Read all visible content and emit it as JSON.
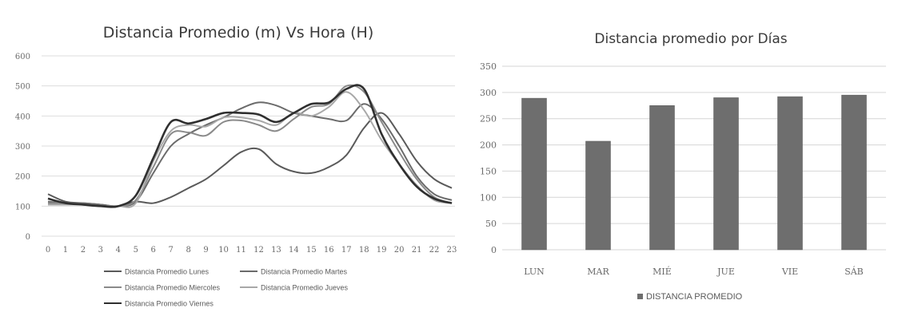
{
  "chart_data": [
    {
      "type": "line",
      "title": "Distancia Promedio (m) Vs Hora (H)",
      "xlabel": "",
      "ylabel": "",
      "x": [
        0,
        1,
        2,
        3,
        4,
        5,
        6,
        7,
        8,
        9,
        10,
        11,
        12,
        13,
        14,
        15,
        16,
        17,
        18,
        19,
        20,
        21,
        22,
        23
      ],
      "ylim": [
        0,
        600
      ],
      "yticks": [
        0,
        100,
        200,
        300,
        400,
        500,
        600
      ],
      "grid": true,
      "legend_position": "bottom",
      "series": [
        {
          "name": "Distancia Promedio Lunes",
          "color": "#5a5a5a",
          "values": [
            140,
            115,
            110,
            105,
            100,
            115,
            110,
            130,
            160,
            190,
            235,
            280,
            290,
            240,
            215,
            210,
            230,
            270,
            360,
            410,
            340,
            250,
            190,
            160
          ]
        },
        {
          "name": "Distancia Promedio Martes",
          "color": "#6b6b6b",
          "values": [
            115,
            110,
            110,
            105,
            100,
            115,
            210,
            300,
            340,
            370,
            395,
            425,
            445,
            435,
            410,
            400,
            390,
            385,
            440,
            390,
            300,
            200,
            140,
            120
          ]
        },
        {
          "name": "Distancia Promedio Miercoles",
          "color": "#8a8a8a",
          "values": [
            110,
            110,
            105,
            100,
            100,
            120,
            230,
            340,
            345,
            335,
            380,
            385,
            370,
            350,
            390,
            430,
            440,
            500,
            480,
            380,
            280,
            190,
            130,
            110
          ]
        },
        {
          "name": "Distancia Promedio Jueves",
          "color": "#a8a8a8",
          "values": [
            105,
            105,
            105,
            100,
            100,
            110,
            250,
            350,
            370,
            365,
            395,
            395,
            385,
            370,
            410,
            400,
            430,
            480,
            420,
            320,
            240,
            170,
            120,
            110
          ]
        },
        {
          "name": "Distancia Promedio Viernes",
          "color": "#2f2f2f",
          "values": [
            125,
            110,
            105,
            100,
            100,
            135,
            260,
            380,
            375,
            390,
            410,
            410,
            405,
            380,
            410,
            440,
            445,
            490,
            490,
            340,
            240,
            165,
            125,
            110
          ]
        }
      ]
    },
    {
      "type": "bar",
      "title": "Distancia promedio por Días",
      "xlabel": "",
      "ylabel": "",
      "categories": [
        "LUN",
        "MAR",
        "MIÉ",
        "JUE",
        "VIE",
        "SÁB"
      ],
      "ylim": [
        0,
        350
      ],
      "yticks": [
        0,
        50,
        100,
        150,
        200,
        250,
        300,
        350
      ],
      "grid": true,
      "legend_position": "bottom",
      "series": [
        {
          "name": "DISTANCIA PROMEDIO",
          "color": "#6e6e6e",
          "values": [
            289,
            207,
            275,
            290,
            292,
            295
          ]
        }
      ]
    }
  ]
}
